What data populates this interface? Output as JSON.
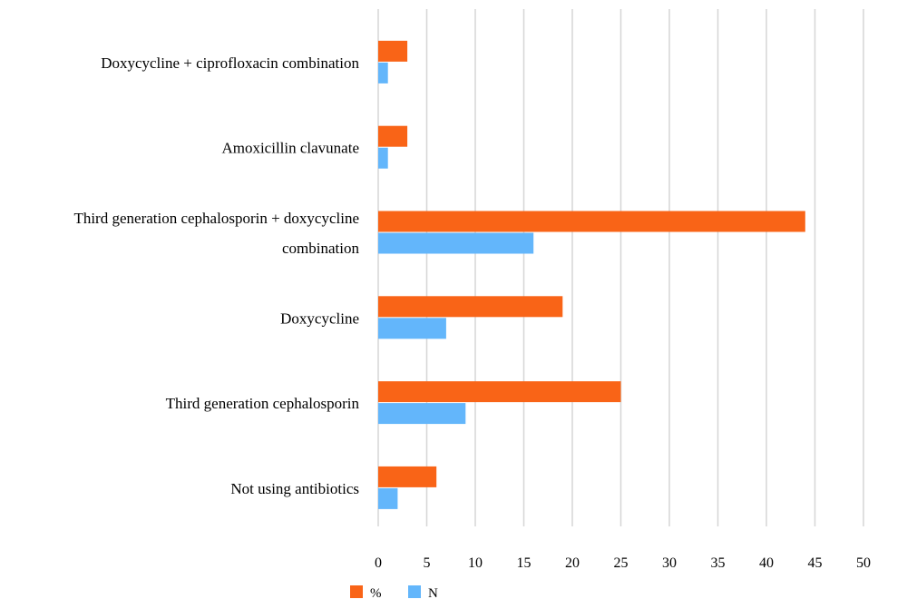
{
  "chart_data": {
    "type": "bar",
    "orientation": "horizontal",
    "categories": [
      [
        "Doxycycline + ciprofloxacin combination"
      ],
      [
        "Amoxicillin clavunate"
      ],
      [
        "Third generation cephalosporin + doxycycline",
        "combination"
      ],
      [
        "Doxycycline"
      ],
      [
        "Third generation cephalosporin"
      ],
      [
        "Not using antibiotics"
      ]
    ],
    "series": [
      {
        "name": "%",
        "color": "#f96417",
        "values": [
          3,
          3,
          44,
          19,
          25,
          6
        ]
      },
      {
        "name": "N",
        "color": "#63b6fb",
        "values": [
          1,
          1,
          16,
          7,
          9,
          2
        ]
      }
    ],
    "xlim": [
      0,
      50
    ],
    "xticks": [
      0,
      5,
      10,
      15,
      20,
      25,
      30,
      35,
      40,
      45,
      50
    ],
    "grid": true,
    "legend_position": "bottom"
  }
}
